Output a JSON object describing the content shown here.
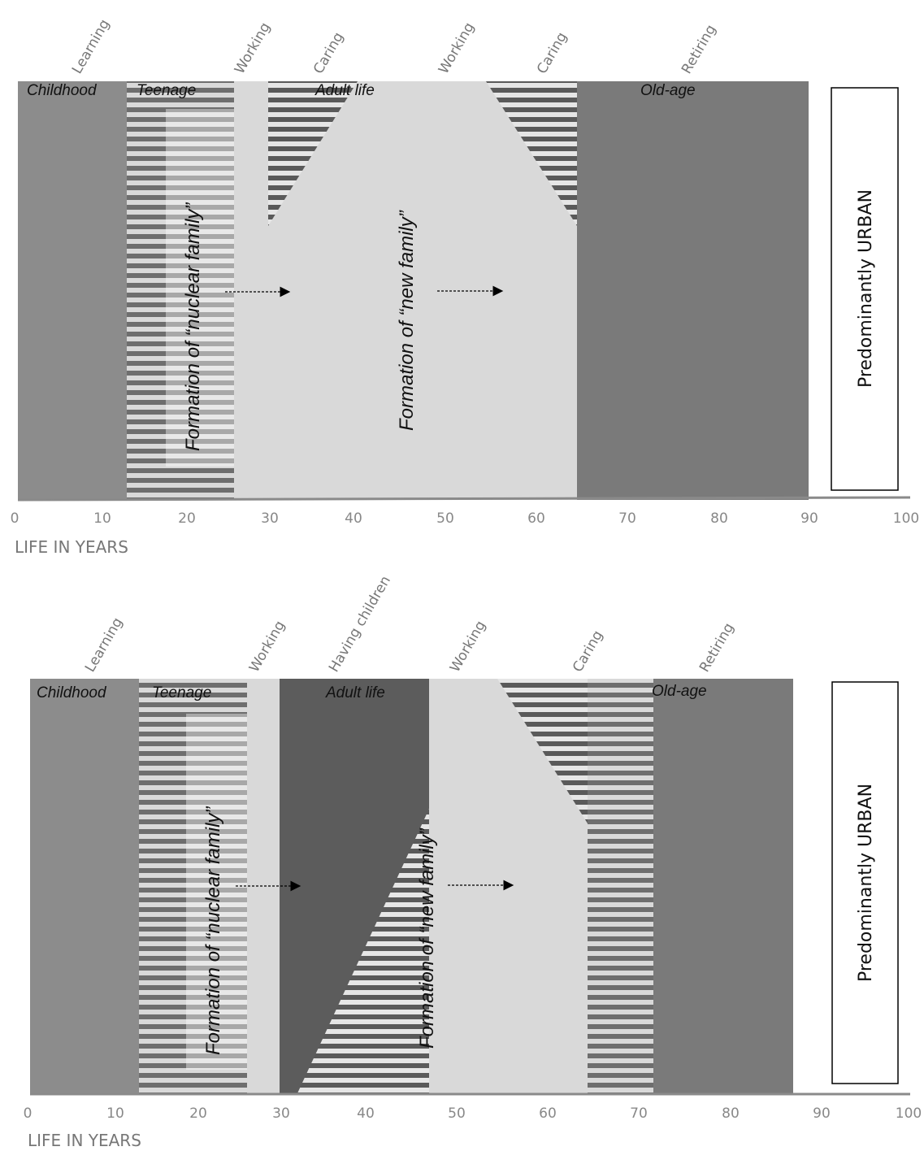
{
  "panels": [
    {
      "id": "top",
      "axis_label": "LIFE IN YEARS",
      "axis_ticks": [
        "0",
        "10",
        "20",
        "30",
        "40",
        "50",
        "60",
        "70",
        "80",
        "90",
        "100"
      ],
      "activities": [
        "Learning",
        "Working",
        "Caring",
        "Working",
        "Caring",
        "Retiring"
      ],
      "stages": [
        "Childhood",
        "Teenage",
        "Adult life",
        "Old-age"
      ],
      "notes": [
        "Formation of “nuclear family”",
        "Formation of “new family”"
      ],
      "side_label": "Predominantly URBAN"
    },
    {
      "id": "bottom",
      "axis_label": "LIFE IN YEARS",
      "axis_ticks": [
        "0",
        "10",
        "20",
        "30",
        "40",
        "50",
        "60",
        "70",
        "80",
        "90",
        "100"
      ],
      "activities": [
        "Learning",
        "Working",
        "Having children",
        "Working",
        "Caring",
        "Retiring"
      ],
      "stages": [
        "Childhood",
        "Teenage",
        "Adult life",
        "Old-age"
      ],
      "notes": [
        "Formation of “nuclear family”",
        "Formation of “new family”"
      ],
      "side_label": "Predominantly URBAN"
    }
  ],
  "colors": {
    "childhood": "#8c8c8c",
    "light": "#d9d9d9",
    "stripe_dark": "#6e6e6e",
    "caring_dark": "#5c5c5c",
    "old_age": "#7a7a7a",
    "axis": "#8a8a8a",
    "label": "#666666"
  }
}
